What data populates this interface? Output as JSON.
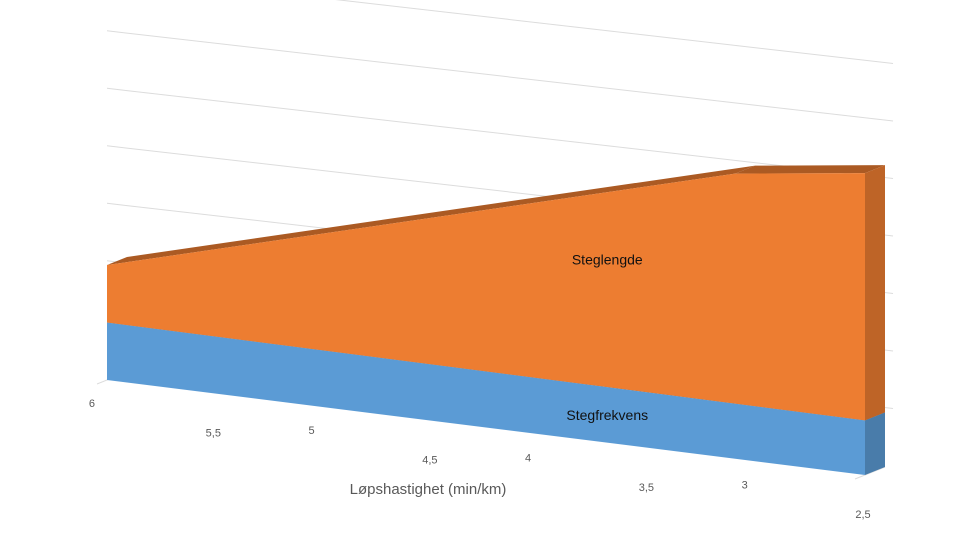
{
  "chart_data": {
    "type": "area",
    "stacked": true,
    "view": "3d",
    "xlabel": "Løpshastighet (min/km)",
    "x_direction": "descending",
    "x_ticks": [
      "6",
      "5,5",
      "5",
      "4,5",
      "4",
      "3,5",
      "3",
      "2,5"
    ],
    "x_range": [
      6,
      2.5
    ],
    "y_axis_labels_shown": false,
    "ylim": [
      0,
      7
    ],
    "y_gridlines": [
      1,
      2,
      3,
      4,
      5,
      6,
      7
    ],
    "grid": true,
    "series": [
      {
        "name": "Stegfrekvens",
        "color": "#5b9bd5",
        "x": [
          6,
          2.5
        ],
        "values": [
          1.0,
          0.95
        ]
      },
      {
        "name": "Steglengde",
        "color": "#ed7d31",
        "x": [
          6,
          3.1,
          2.5
        ],
        "values": [
          1.0,
          4.0,
          4.3
        ]
      }
    ]
  }
}
